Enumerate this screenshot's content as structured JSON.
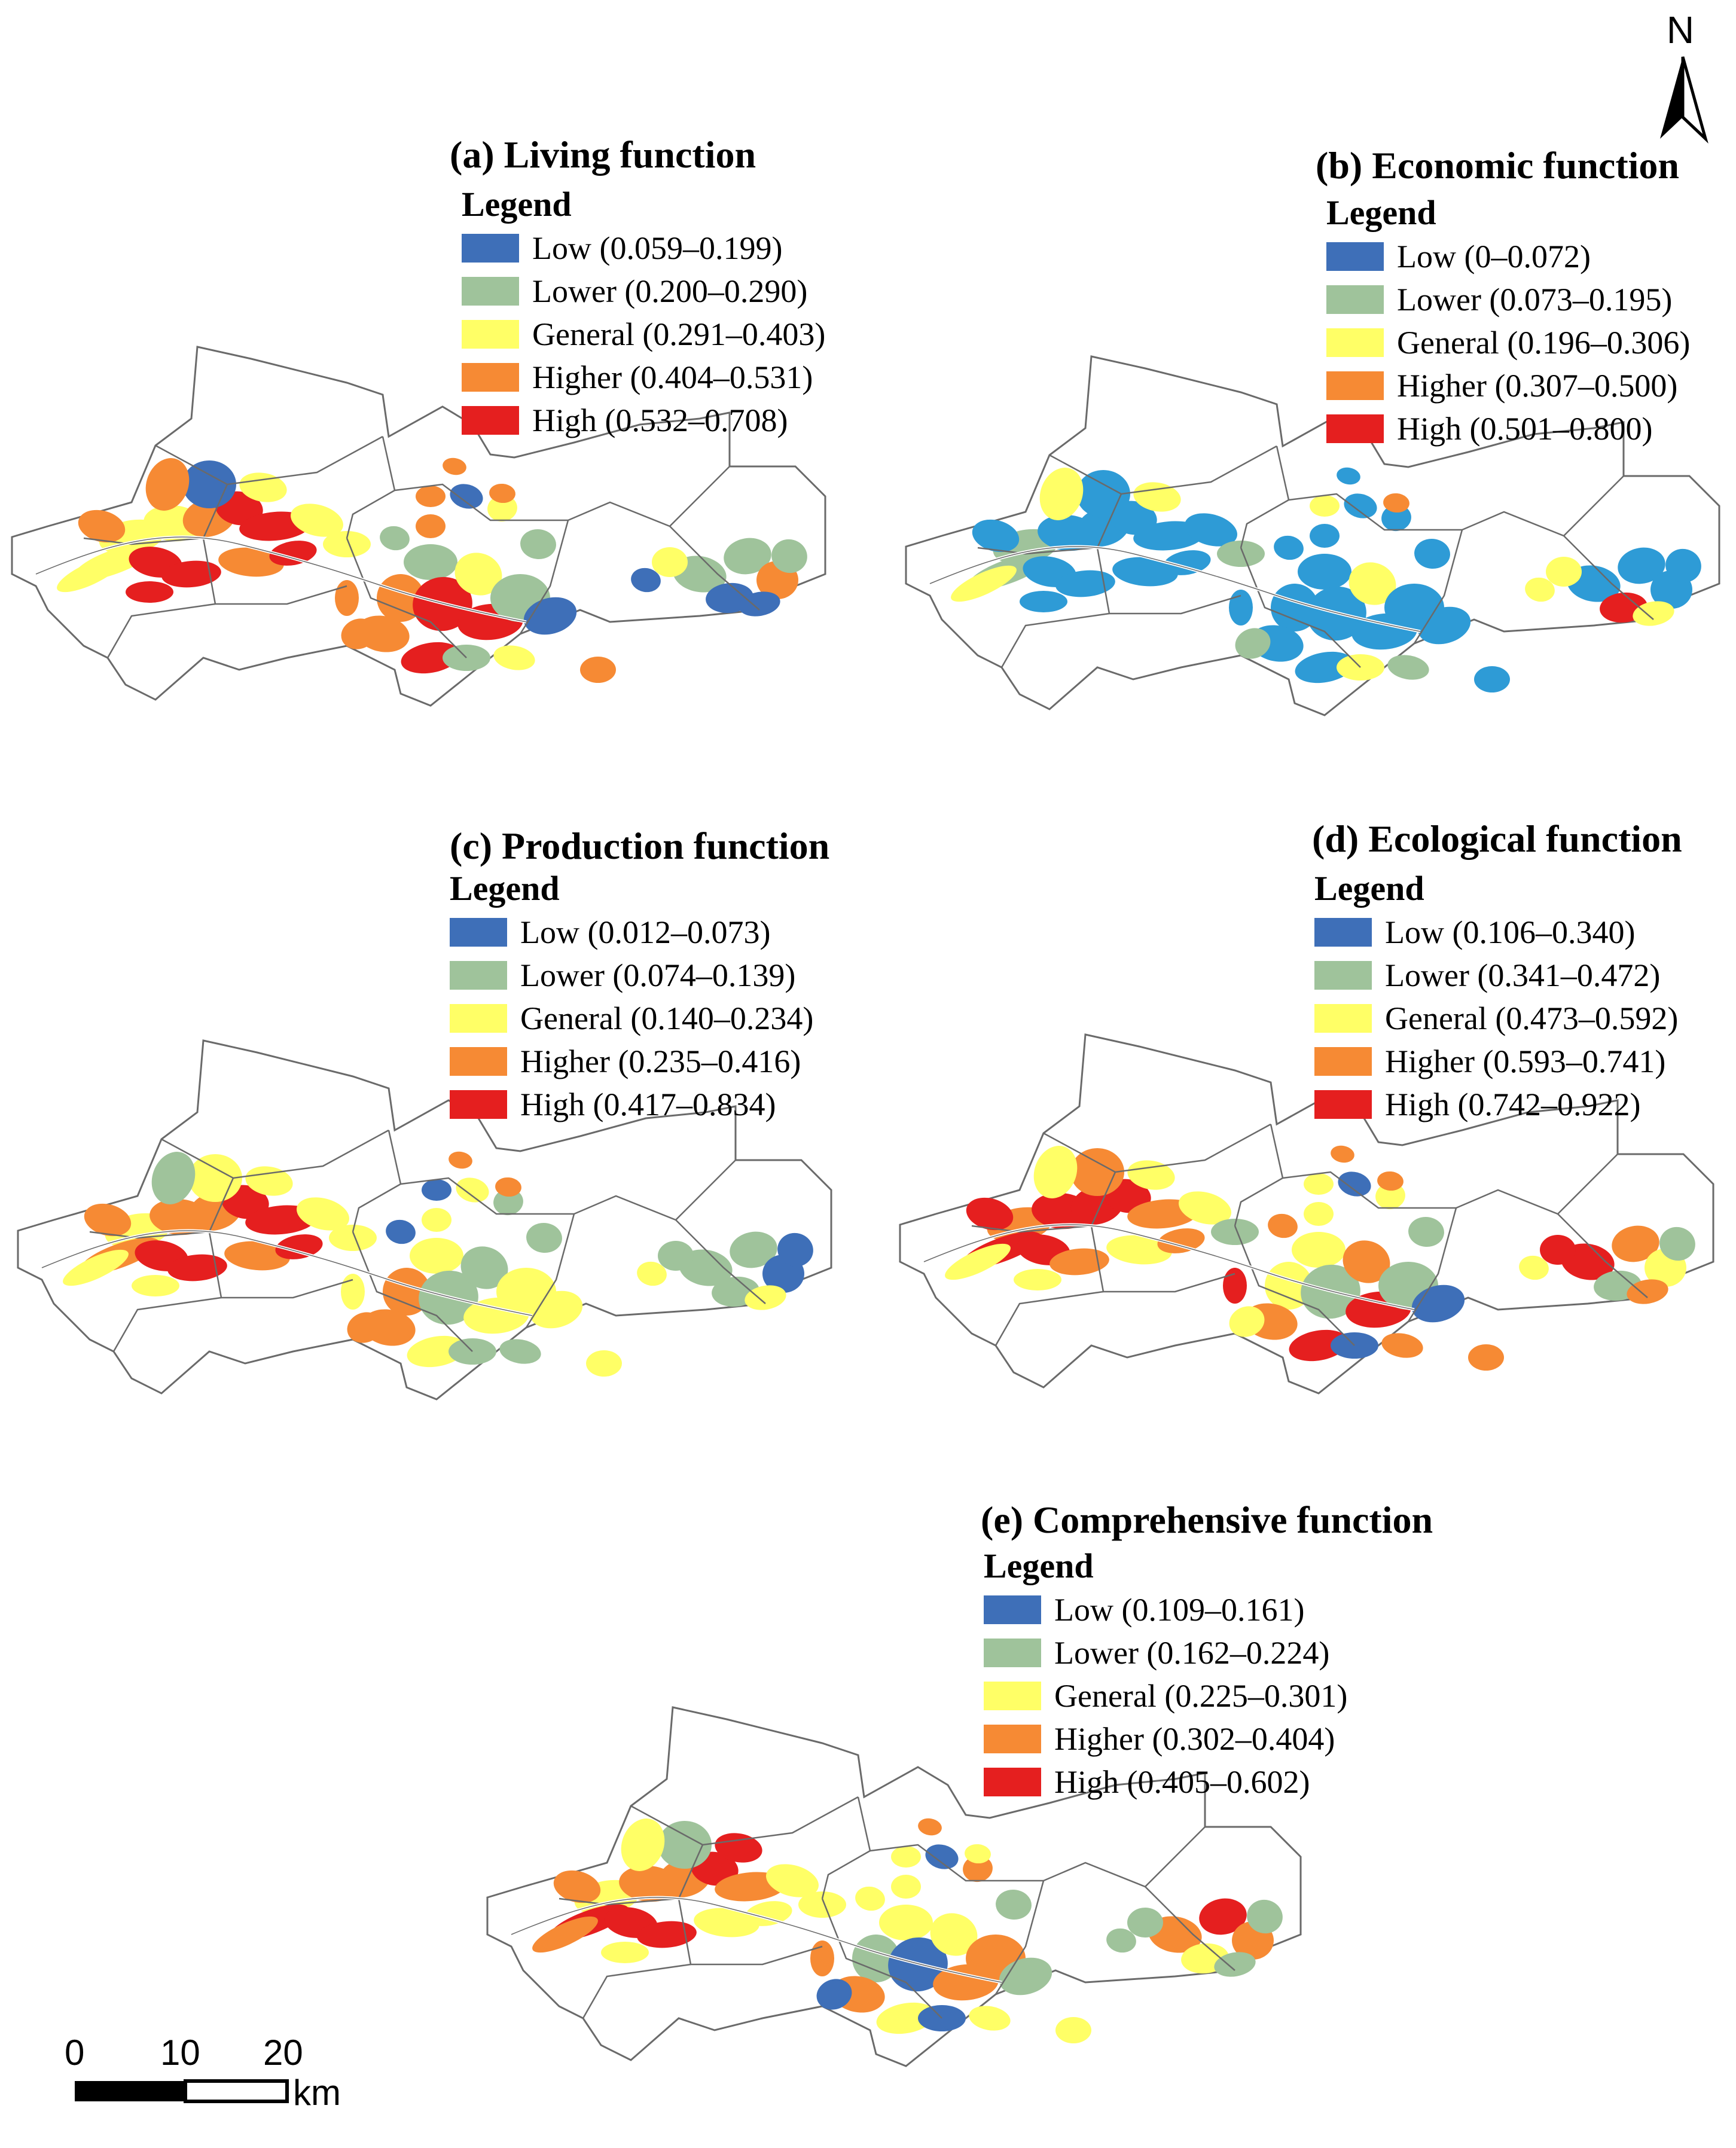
{
  "colors": {
    "low": "#3e6fb8",
    "lower": "#9fc39b",
    "general": "#ffff66",
    "higher": "#f68a34",
    "high": "#e51f1f",
    "boundary": "#6a6a6a",
    "low_economic": "#2e9bd6"
  },
  "north": {
    "label": "N"
  },
  "scale_bar": {
    "ticks": [
      "0",
      "10",
      "20"
    ],
    "unit": "km"
  },
  "panels": [
    {
      "id": "a",
      "title": "(a) Living function",
      "legend_heading": "Legend",
      "classes": [
        {
          "label": "Low (0.059–0.199)",
          "color_key": "low"
        },
        {
          "label": "Lower  (0.200–0.290)",
          "color_key": "lower"
        },
        {
          "label": "General (0.291–0.403)",
          "color_key": "general"
        },
        {
          "label": "Higher (0.404–0.531)",
          "color_key": "higher"
        },
        {
          "label": "High (0.532–0.708)",
          "color_key": "high"
        }
      ]
    },
    {
      "id": "b",
      "title": "(b) Economic function",
      "legend_heading": "Legend",
      "classes": [
        {
          "label": "Low (0–0.072)",
          "color_key": "low"
        },
        {
          "label": "Lower  (0.073–0.195)",
          "color_key": "lower"
        },
        {
          "label": "General (0.196–0.306)",
          "color_key": "general"
        },
        {
          "label": "Higher (0.307–0.500)",
          "color_key": "higher"
        },
        {
          "label": "High (0.501–0.800)",
          "color_key": "high"
        }
      ]
    },
    {
      "id": "c",
      "title": "(c) Production function",
      "legend_heading": "Legend",
      "classes": [
        {
          "label": "Low (0.012–0.073)",
          "color_key": "low"
        },
        {
          "label": "Lower  (0.074–0.139)",
          "color_key": "lower"
        },
        {
          "label": "General (0.140–0.234)",
          "color_key": "general"
        },
        {
          "label": "Higher (0.235–0.416)",
          "color_key": "higher"
        },
        {
          "label": "High (0.417–0.834)",
          "color_key": "high"
        }
      ]
    },
    {
      "id": "d",
      "title": "(d) Ecological function",
      "legend_heading": "Legend",
      "classes": [
        {
          "label": "Low (0.106–0.340)",
          "color_key": "low"
        },
        {
          "label": "Lower  (0.341–0.472)",
          "color_key": "lower"
        },
        {
          "label": "General (0.473–0.592)",
          "color_key": "general"
        },
        {
          "label": "Higher (0.593–0.741)",
          "color_key": "higher"
        },
        {
          "label": "High (0.742–0.922)",
          "color_key": "high"
        }
      ]
    },
    {
      "id": "e",
      "title": "(e) Comprehensive function",
      "legend_heading": "Legend",
      "classes": [
        {
          "label": "Low (0.109–0.161)",
          "color_key": "low"
        },
        {
          "label": "Lower  (0.162–0.224)",
          "color_key": "lower"
        },
        {
          "label": "General (0.225–0.301)",
          "color_key": "general"
        },
        {
          "label": "Higher (0.302–0.404)",
          "color_key": "higher"
        },
        {
          "label": "High (0.405–0.602)",
          "color_key": "high"
        }
      ]
    }
  ]
}
